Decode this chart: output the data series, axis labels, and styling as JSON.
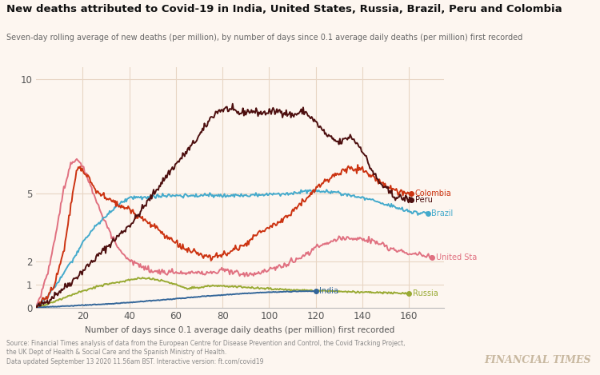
{
  "title": "New deaths attributed to Covid-19 in India, United States, Russia, Brazil, Peru and Colombia",
  "subtitle": "Seven-day rolling average of new deaths (per million), by number of days since 0.1 average daily deaths (per million) first recorded",
  "xlabel": "Number of days since 0.1 average daily deaths (per million) first recorded",
  "ylabel": "",
  "background_color": "#fdf6f0",
  "grid_color": "#e8d5c4",
  "ft_watermark": "FINANCIAL TIMES",
  "source_text": "Source: Financial Times analysis of data from the European Centre for Disease Prevention and Control, the Covid Tracking Project,\nthe UK Dept of Health & Social Care and the Spanish Ministry of Health.\nData updated September 13 2020 11.56am BST. Interactive version: ft.com/covid19",
  "countries": {
    "Peru": {
      "color": "#4d0f0f",
      "end_label": "Peru",
      "end_x": 161,
      "end_y": 4.7
    },
    "Colombia": {
      "color": "#cc3311",
      "end_label": "Colombia",
      "end_x": 161,
      "end_y": 5.0
    },
    "Brazil": {
      "color": "#44aacc",
      "end_label": "Brazil",
      "end_x": 168,
      "end_y": 4.1
    },
    "United States": {
      "color": "#e07080",
      "end_label": "United Sta",
      "end_x": 170,
      "end_y": 2.2
    },
    "India": {
      "color": "#336699",
      "end_label": "India",
      "end_x": 120,
      "end_y": 0.72
    },
    "Russia": {
      "color": "#99aa33",
      "end_label": "Russia",
      "end_x": 160,
      "end_y": 0.62
    }
  },
  "xlim": [
    0,
    175
  ],
  "ylim": [
    0,
    10.5
  ],
  "xticks": [
    20,
    40,
    60,
    80,
    100,
    120,
    140,
    160
  ],
  "yticks": [
    0,
    1,
    2,
    5,
    10
  ]
}
